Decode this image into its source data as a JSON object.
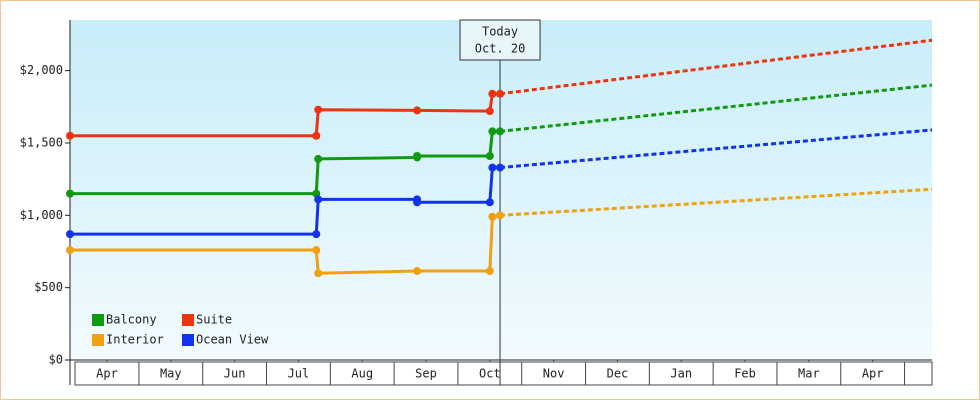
{
  "chart_data": {
    "type": "step-line",
    "annotation": {
      "lines": [
        "Today",
        "Oct. 20"
      ],
      "x": 6.66
    },
    "xlim": [
      -0.08,
      13.43
    ],
    "xticks": [
      {
        "value": 0.5,
        "label": "Apr"
      },
      {
        "value": 1.5,
        "label": "May"
      },
      {
        "value": 2.5,
        "label": "Jun"
      },
      {
        "value": 3.5,
        "label": "Jul"
      },
      {
        "value": 4.5,
        "label": "Aug"
      },
      {
        "value": 5.5,
        "label": "Sep"
      },
      {
        "value": 6.5,
        "label": "Oct"
      },
      {
        "value": 7.5,
        "label": "Nov"
      },
      {
        "value": 8.5,
        "label": "Dec"
      },
      {
        "value": 9.5,
        "label": "Jan"
      },
      {
        "value": 10.5,
        "label": "Feb"
      },
      {
        "value": 11.5,
        "label": "Mar"
      },
      {
        "value": 12.5,
        "label": "Apr"
      }
    ],
    "ylim": [
      0,
      2350
    ],
    "yticks": [
      {
        "value": 0,
        "label": "$0"
      },
      {
        "value": 500,
        "label": "$500"
      },
      {
        "value": 1000,
        "label": "$1,000"
      },
      {
        "value": 1500,
        "label": "$1,500"
      },
      {
        "value": 2000,
        "label": "$2,000"
      }
    ],
    "series": [
      {
        "name": "Balcony",
        "color": "#119911",
        "x": [
          -0.08,
          3.78,
          3.81,
          5.36,
          5.36,
          6.5,
          6.54,
          6.66
        ],
        "values": [
          1150,
          1150,
          1390,
          1400,
          1410,
          1410,
          1580,
          1580
        ],
        "projection": {
          "x": [
            6.66,
            13.43
          ],
          "values": [
            1580,
            1900
          ]
        }
      },
      {
        "name": "Suite",
        "color": "#ee3311",
        "x": [
          -0.08,
          3.78,
          3.81,
          5.36,
          6.5,
          6.54,
          6.66
        ],
        "values": [
          1550,
          1550,
          1730,
          1725,
          1720,
          1840,
          1840
        ],
        "projection": {
          "x": [
            6.66,
            13.43
          ],
          "values": [
            1840,
            2210
          ]
        }
      },
      {
        "name": "Interior",
        "color": "#f0a010",
        "x": [
          -0.08,
          3.78,
          3.81,
          5.36,
          6.5,
          6.54,
          6.66
        ],
        "values": [
          760,
          760,
          600,
          615,
          615,
          990,
          1000
        ],
        "projection": {
          "x": [
            6.66,
            13.43
          ],
          "values": [
            1000,
            1180
          ]
        }
      },
      {
        "name": "Ocean View",
        "color": "#1133ee",
        "x": [
          -0.08,
          3.78,
          3.81,
          5.36,
          5.36,
          6.5,
          6.54,
          6.66
        ],
        "values": [
          870,
          870,
          1110,
          1110,
          1090,
          1090,
          1330,
          1330
        ],
        "projection": {
          "x": [
            6.66,
            13.43
          ],
          "values": [
            1330,
            1590
          ]
        }
      }
    ]
  }
}
